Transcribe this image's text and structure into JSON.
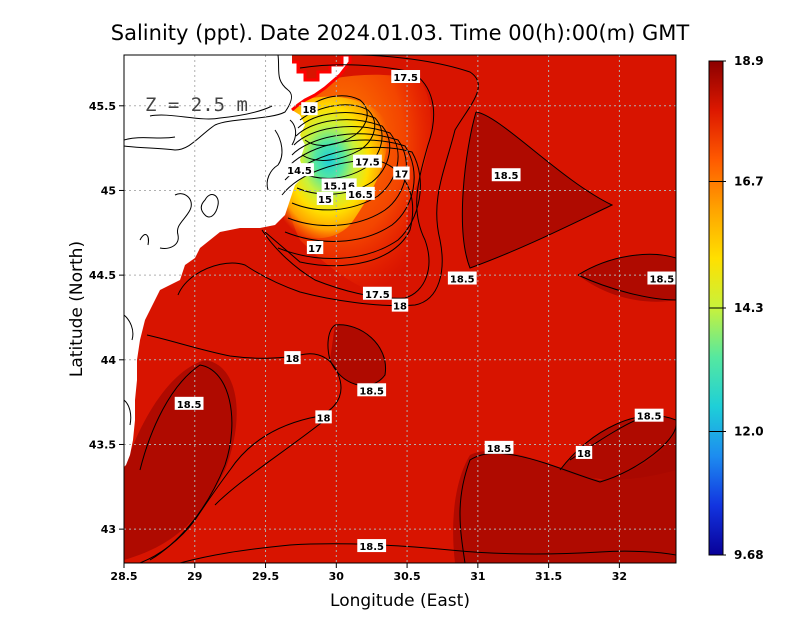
{
  "chart_data": {
    "type": "heatmap",
    "title": "Salinity (ppt). Date 2024.01.03. Time 00(h):00(m) GMT",
    "xlabel": "Longitude (East)",
    "ylabel": "Latitude (North)",
    "xlim": [
      28.5,
      32.4
    ],
    "ylim": [
      42.8,
      45.8
    ],
    "x_ticks": [
      "28.5",
      "29",
      "29.5",
      "30",
      "30.5",
      "31",
      "31.5",
      "32"
    ],
    "y_ticks": [
      "43",
      "43.5",
      "44",
      "44.5",
      "45",
      "45.5"
    ],
    "grid": true,
    "depth_label": "Z = 2.5 m",
    "colorbar": {
      "min": 9.68,
      "max": 18.9,
      "tick_labels": [
        "18.9",
        "16.7",
        "14.3",
        "12.0",
        "9.68"
      ],
      "colors": [
        "#8b0000",
        "#dd1800",
        "#ff5a00",
        "#ffa300",
        "#ffe000",
        "#c8f23c",
        "#55e8a0",
        "#1ecfd8",
        "#1d8cf0",
        "#1234e0",
        "#080098"
      ]
    },
    "contour_labels": [
      {
        "text": "17.5",
        "lon": 30.49,
        "lat": 45.67
      },
      {
        "text": "18",
        "lon": 29.81,
        "lat": 45.48
      },
      {
        "text": "17.5",
        "lon": 30.22,
        "lat": 45.17
      },
      {
        "text": "17",
        "lon": 30.46,
        "lat": 45.1
      },
      {
        "text": "14.5",
        "lon": 29.74,
        "lat": 45.12
      },
      {
        "text": "15.16",
        "lon": 30.02,
        "lat": 45.03
      },
      {
        "text": "16.5",
        "lon": 30.17,
        "lat": 44.98
      },
      {
        "text": "15",
        "lon": 29.92,
        "lat": 44.95
      },
      {
        "text": "17",
        "lon": 29.85,
        "lat": 44.66
      },
      {
        "text": "18.5",
        "lon": 31.2,
        "lat": 45.09
      },
      {
        "text": "18.5",
        "lon": 30.89,
        "lat": 44.48
      },
      {
        "text": "17.5",
        "lon": 30.29,
        "lat": 44.39
      },
      {
        "text": "18",
        "lon": 30.45,
        "lat": 44.32
      },
      {
        "text": "18.5",
        "lon": 32.3,
        "lat": 44.48
      },
      {
        "text": "18",
        "lon": 29.69,
        "lat": 44.01
      },
      {
        "text": "18.5",
        "lon": 30.25,
        "lat": 43.82
      },
      {
        "text": "18.5",
        "lon": 28.96,
        "lat": 43.74
      },
      {
        "text": "18",
        "lon": 29.91,
        "lat": 43.66
      },
      {
        "text": "18.5",
        "lon": 31.15,
        "lat": 43.48
      },
      {
        "text": "18",
        "lon": 31.75,
        "lat": 43.45
      },
      {
        "text": "18.5",
        "lon": 32.21,
        "lat": 43.67
      },
      {
        "text": "18.5",
        "lon": 30.25,
        "lat": 42.9
      }
    ],
    "low_salinity_core": {
      "lon": 29.95,
      "lat": 45.27,
      "min_value": 11.8
    },
    "colors": {
      "land": "#ffffff",
      "mask_edge": "#ff0000",
      "contour_line": "#000000",
      "grid_line": "#b0b0b0",
      "background_sea": "#d81400",
      "high_salinity": "#a80800"
    }
  }
}
